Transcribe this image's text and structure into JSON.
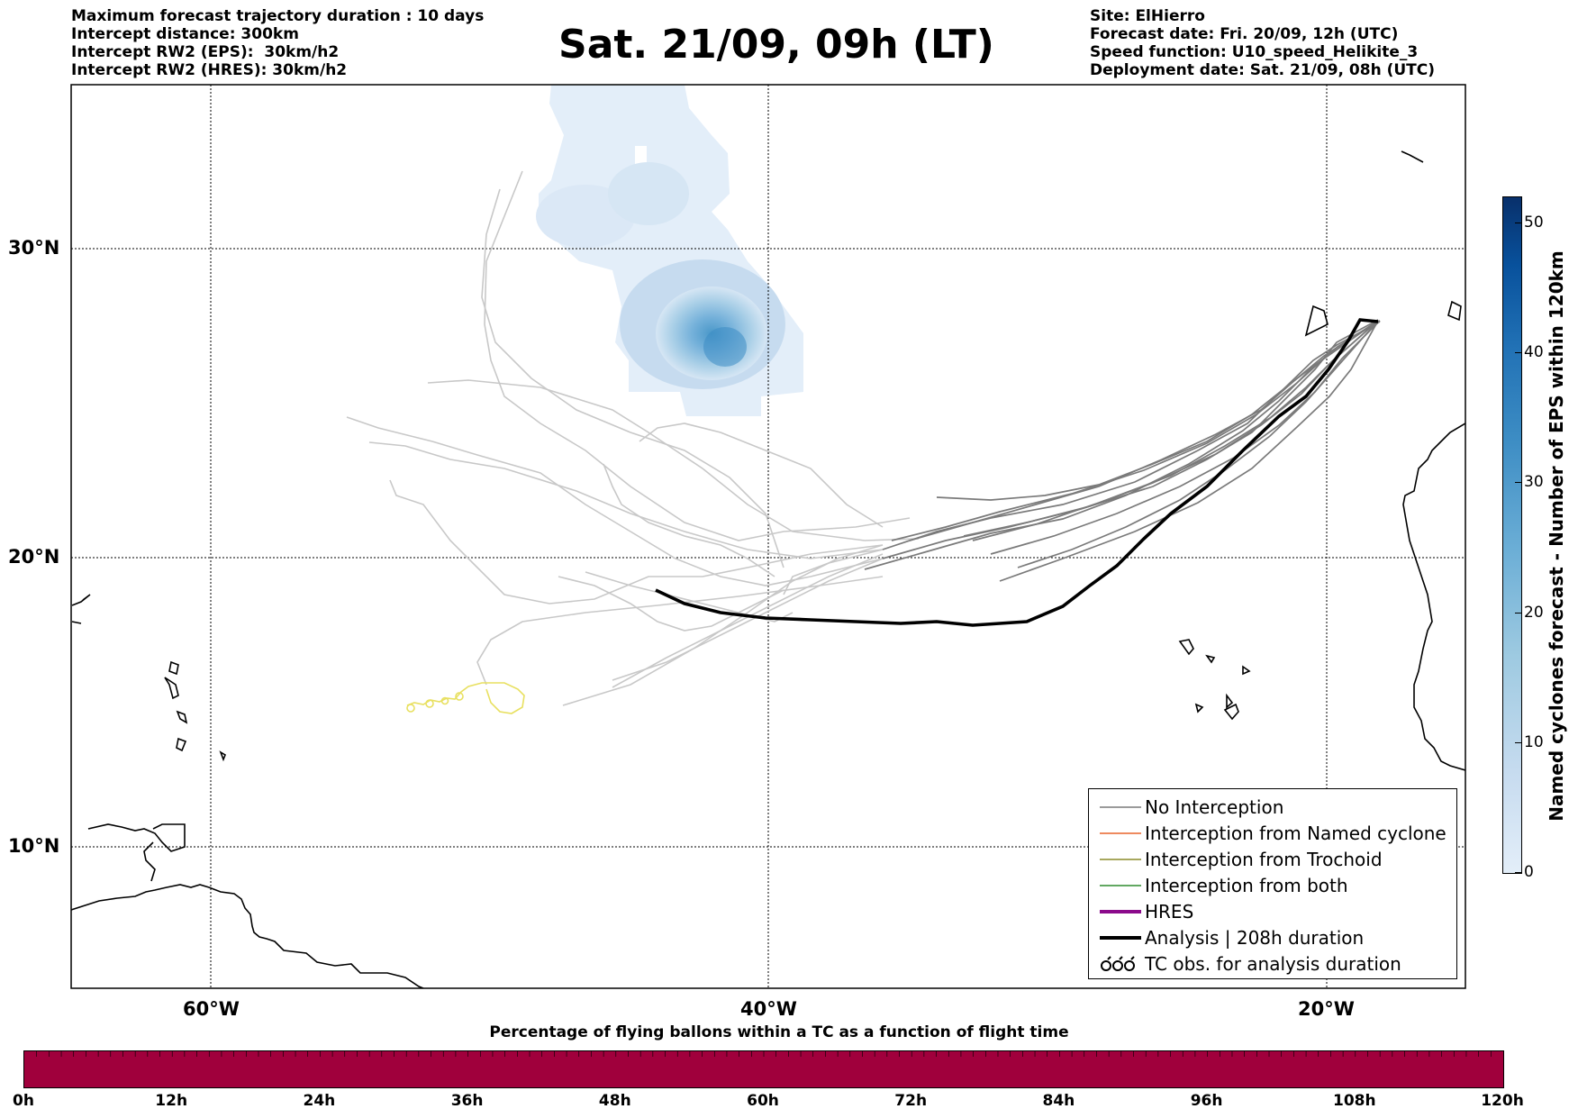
{
  "header": {
    "left": [
      "Maximum forecast trajectory duration : 10 days",
      "Intercept distance: 300km",
      "Intercept RW2 (EPS):  30km/h2",
      "Intercept RW2 (HRES): 30km/h2"
    ],
    "title": "Sat. 21/09, 09h (LT)",
    "right": [
      "Site: ElHierro",
      "Forecast date: Fri. 20/09, 12h (UTC)",
      "Speed function: U10_speed_Helikite_3",
      "Deployment date: Sat. 21/09, 08h (UTC)"
    ]
  },
  "map": {
    "lat_labels": [
      "30°N",
      "20°N",
      "10°N"
    ],
    "lon_labels": [
      "60°W",
      "40°W",
      "20°W"
    ],
    "colors": {
      "no_interception": "#7a7a7a",
      "interception_named": "#e8632a",
      "interception_trochoid": "#8b8b2a",
      "interception_both": "#2e8b2e",
      "hres": "#8b0a8b",
      "analysis": "#000000",
      "tc_obs": "#e8e060",
      "eps_tracks": "#c8c8c8"
    }
  },
  "legend": {
    "items": [
      {
        "label": "No Interception",
        "icon": "thin-gray-line"
      },
      {
        "label": "Interception from Named cyclone",
        "icon": "thin-orange-line"
      },
      {
        "label": "Interception from Trochoid",
        "icon": "thin-olive-line"
      },
      {
        "label": "Interception from both",
        "icon": "thin-green-line"
      },
      {
        "label": "HRES",
        "icon": "thick-purple-line"
      },
      {
        "label": "Analysis | 208h duration",
        "icon": "thick-black-line"
      },
      {
        "label": "TC obs. for analysis duration",
        "icon": "loop-symbol"
      }
    ]
  },
  "colorbar": {
    "title": "Named cyclones forecast - Number of EPS within 120km",
    "ticks": [
      "0",
      "10",
      "20",
      "30",
      "40",
      "50"
    ],
    "max": 52
  },
  "bottom_bar": {
    "title": "Percentage of flying ballons within a TC as a function of flight time",
    "color": "#a0003c",
    "ticks": [
      "0h",
      "12h",
      "24h",
      "36h",
      "48h",
      "60h",
      "72h",
      "84h",
      "96h",
      "108h",
      "120h"
    ]
  }
}
